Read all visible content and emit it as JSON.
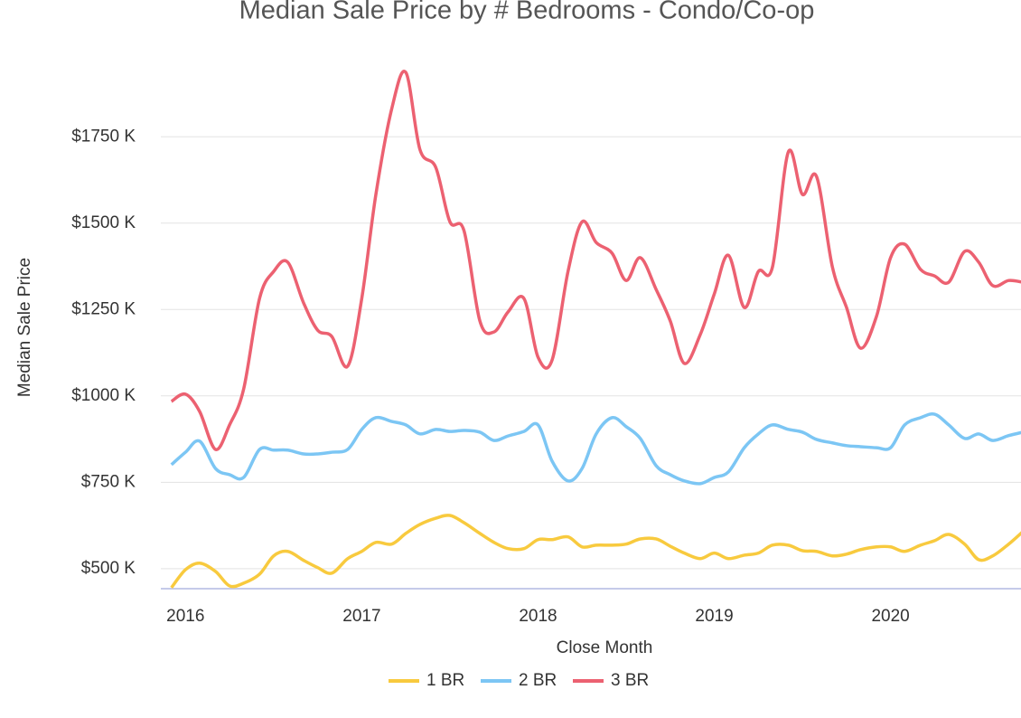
{
  "chart_data": {
    "type": "line",
    "title": "Median Sale Price by # Bedrooms - Condo/Co-op",
    "x_label": "Close Month",
    "y_label": "Median Sale Price",
    "x": [
      2015.92,
      2016,
      2016.08,
      2016.17,
      2016.25,
      2016.33,
      2016.42,
      2016.5,
      2016.58,
      2016.67,
      2016.75,
      2016.83,
      2016.92,
      2017,
      2017.08,
      2017.17,
      2017.25,
      2017.33,
      2017.42,
      2017.5,
      2017.58,
      2017.67,
      2017.75,
      2017.83,
      2017.92,
      2018,
      2018.08,
      2018.17,
      2018.25,
      2018.33,
      2018.42,
      2018.5,
      2018.58,
      2018.67,
      2018.75,
      2018.83,
      2018.92,
      2019,
      2019.08,
      2019.17,
      2019.25,
      2019.33,
      2019.42,
      2019.5,
      2019.58,
      2019.67,
      2019.75,
      2019.83,
      2019.92,
      2020,
      2020.08,
      2020.17,
      2020.25,
      2020.33,
      2020.42,
      2020.5,
      2020.58,
      2020.67,
      2020.75
    ],
    "series": [
      {
        "name": "1 BR",
        "color": "#f8ca3e",
        "values": [
          445,
          497,
          516,
          492,
          450,
          458,
          484,
          537,
          550,
          524,
          503,
          487,
          529,
          550,
          576,
          571,
          602,
          628,
          646,
          654,
          633,
          602,
          576,
          558,
          558,
          584,
          584,
          592,
          563,
          568,
          568,
          571,
          586,
          586,
          565,
          545,
          529,
          545,
          529,
          539,
          545,
          568,
          568,
          552,
          550,
          537,
          542,
          555,
          563,
          563,
          550,
          568,
          581,
          599,
          571,
          526,
          537,
          571,
          607
        ]
      },
      {
        "name": "2 BR",
        "color": "#7cc6f4",
        "values": [
          801,
          837,
          869,
          790,
          772,
          764,
          845,
          843,
          843,
          832,
          832,
          837,
          845,
          903,
          937,
          926,
          916,
          890,
          903,
          897,
          900,
          895,
          871,
          884,
          897,
          916,
          811,
          754,
          790,
          890,
          937,
          911,
          877,
          798,
          772,
          754,
          746,
          764,
          780,
          850,
          890,
          916,
          903,
          895,
          874,
          864,
          856,
          853,
          850,
          850,
          916,
          937,
          947,
          916,
          877,
          890,
          871,
          885,
          895
        ]
      },
      {
        "name": "3 BR",
        "color": "#ec6171",
        "values": [
          984,
          1005,
          955,
          845,
          916,
          1020,
          1282,
          1360,
          1387,
          1269,
          1190,
          1172,
          1086,
          1282,
          1583,
          1831,
          1936,
          1713,
          1661,
          1504,
          1478,
          1217,
          1185,
          1243,
          1282,
          1112,
          1104,
          1360,
          1504,
          1444,
          1413,
          1334,
          1400,
          1308,
          1217,
          1094,
          1177,
          1295,
          1407,
          1256,
          1360,
          1373,
          1706,
          1583,
          1635,
          1373,
          1256,
          1138,
          1230,
          1400,
          1439,
          1366,
          1347,
          1329,
          1418,
          1387,
          1319,
          1334,
          1329
        ]
      }
    ],
    "xlim": [
      2015.86,
      2020.74
    ],
    "xticks": [
      2016,
      2017,
      2018,
      2019,
      2020
    ],
    "ylim": [
      442,
      1960
    ],
    "yticks": [
      {
        "value": 500,
        "label": "$500 K"
      },
      {
        "value": 750,
        "label": "$750 K"
      },
      {
        "value": 1000,
        "label": "$1000 K"
      },
      {
        "value": 1250,
        "label": "$1250 K"
      },
      {
        "value": 1500,
        "label": "$1500 K"
      },
      {
        "value": 1750,
        "label": "$1750 K"
      }
    ],
    "grid": true,
    "legend": "bottom"
  }
}
